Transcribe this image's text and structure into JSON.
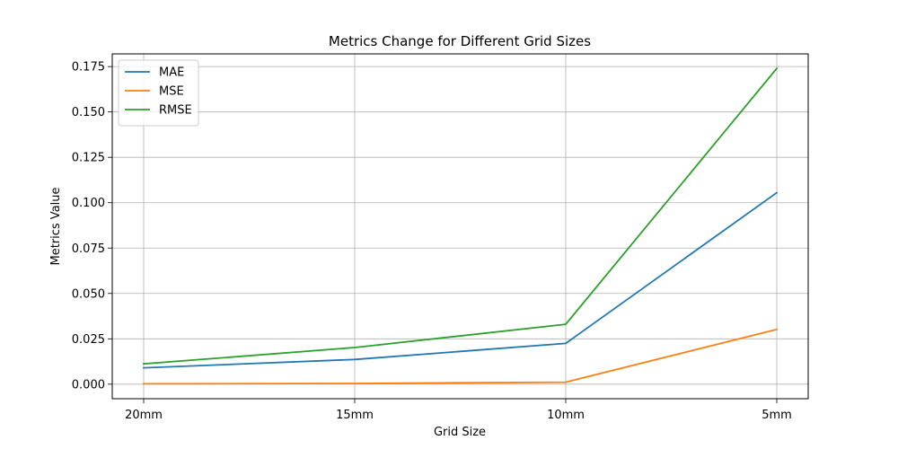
{
  "chart_data": {
    "type": "line",
    "title": "Metrics Change for Different Grid Sizes",
    "xlabel": "Grid Size",
    "ylabel": "Metrics Value",
    "categories": [
      "20mm",
      "15mm",
      "10mm",
      "5mm"
    ],
    "ylim": [
      -0.008,
      0.182
    ],
    "yticks": [
      0.0,
      0.025,
      0.05,
      0.075,
      0.1,
      0.125,
      0.15,
      0.175
    ],
    "ytick_labels": [
      "0.000",
      "0.025",
      "0.050",
      "0.075",
      "0.100",
      "0.125",
      "0.150",
      "0.175"
    ],
    "grid": true,
    "legend_position": "top-left",
    "series": [
      {
        "name": "MAE",
        "color": "#1f77b4",
        "values": [
          0.009,
          0.0136,
          0.0225,
          0.1055
        ]
      },
      {
        "name": "MSE",
        "color": "#ff7f0e",
        "values": [
          0.0002,
          0.0004,
          0.0011,
          0.0302
        ]
      },
      {
        "name": "RMSE",
        "color": "#2ca02c",
        "values": [
          0.0112,
          0.0202,
          0.033,
          0.174
        ]
      }
    ]
  }
}
